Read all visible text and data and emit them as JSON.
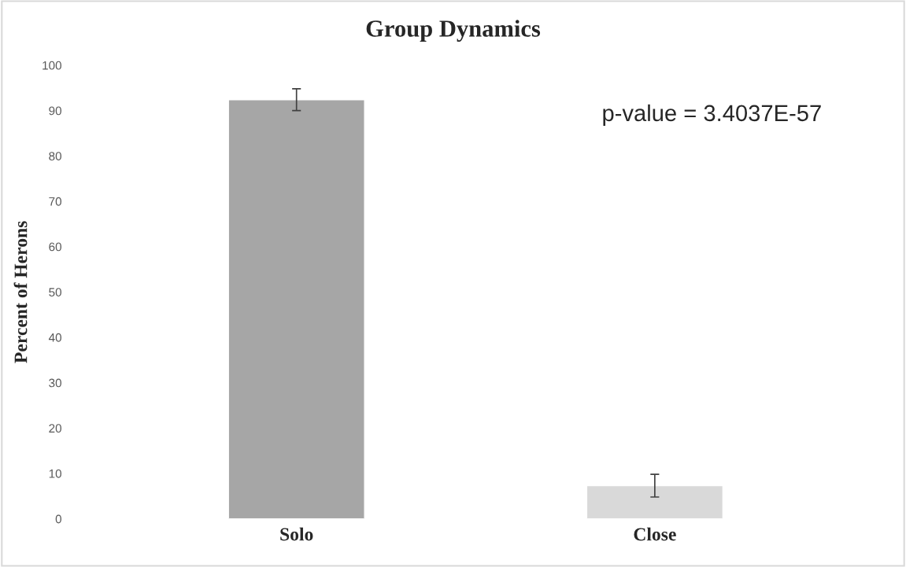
{
  "chart_data": {
    "type": "bar",
    "title": "Group Dynamics",
    "ylabel": "Percent of Herons",
    "categories": [
      "Solo",
      "Close"
    ],
    "values": [
      92.4,
      7.3
    ],
    "colors": [
      "#a6a6a6",
      "#d9d9d9"
    ],
    "errors": [
      2.4,
      2.5
    ],
    "ylim": [
      0,
      100
    ],
    "yticks": [
      0,
      10,
      20,
      30,
      40,
      50,
      60,
      70,
      80,
      90,
      100
    ],
    "grid": false,
    "annotations": [
      "p-value = 3.4037E-57"
    ]
  }
}
